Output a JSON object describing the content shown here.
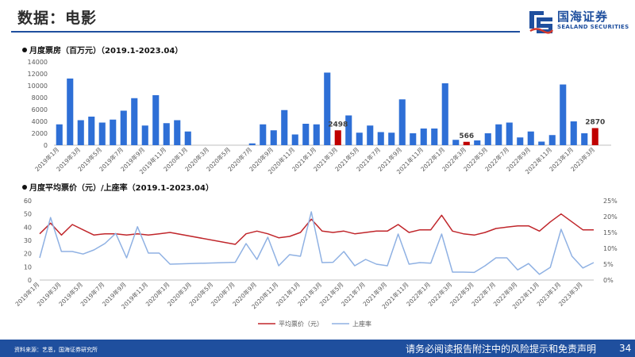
{
  "header": {
    "title": "数据：电影",
    "logo_cn": "国海证券",
    "logo_en": "SEALAND SECURITIES"
  },
  "colors": {
    "brand": "#1f4f9e",
    "bar": "#2e6fd6",
    "bar_highlight": "#c00000",
    "price_line": "#c0262b",
    "occupancy_line": "#8fb1e3"
  },
  "chart_data": [
    {
      "type": "bar",
      "title": "月度票房（百万元）（2019.1-2023.04）",
      "ylim": [
        0,
        14000
      ],
      "yticks": [
        "0",
        "2000",
        "4000",
        "6000",
        "8000",
        "10000",
        "12000",
        "14000"
      ],
      "categories": [
        "2019年1月",
        "2019年2月",
        "2019年3月",
        "2019年4月",
        "2019年5月",
        "2019年6月",
        "2019年7月",
        "2019年8月",
        "2019年9月",
        "2019年10月",
        "2019年11月",
        "2019年12月",
        "2020年1月",
        "2020年2月",
        "2020年3月",
        "2020年4月",
        "2020年5月",
        "2020年6月",
        "2020年7月",
        "2020年8月",
        "2020年9月",
        "2020年10月",
        "2020年11月",
        "2020年12月",
        "2021年1月",
        "2021年2月",
        "2021年3月",
        "2021年4月",
        "2021年5月",
        "2021年6月",
        "2021年7月",
        "2021年8月",
        "2021年9月",
        "2021年10月",
        "2021年11月",
        "2021年12月",
        "2022年1月",
        "2022年2月",
        "2022年3月",
        "2022年4月",
        "2022年5月",
        "2022年6月",
        "2022年7月",
        "2022年8月",
        "2022年9月",
        "2022年10月",
        "2022年11月",
        "2022年12月",
        "2023年1月",
        "2023年2月",
        "2023年3月",
        "2023年4月"
      ],
      "tick_labels": [
        "2019年1月",
        "2019年3月",
        "2019年5月",
        "2019年7月",
        "2019年9月",
        "2019年11月",
        "2020年1月",
        "2020年3月",
        "2020年5月",
        "2020年7月",
        "2020年9月",
        "2020年11月",
        "2021年1月",
        "2021年3月",
        "2021年5月",
        "2021年7月",
        "2021年9月",
        "2021年11月",
        "2022年1月",
        "2022年3月",
        "2022年5月",
        "2022年7月",
        "2022年9月",
        "2022年11月",
        "2023年1月",
        "2023年3月"
      ],
      "values": [
        3500,
        11200,
        4200,
        4800,
        3800,
        4300,
        5800,
        7900,
        3300,
        8400,
        3700,
        4200,
        2300,
        0,
        0,
        0,
        0,
        0,
        300,
        3500,
        2500,
        5900,
        1800,
        3600,
        3500,
        12200,
        2498,
        5000,
        2100,
        3300,
        2200,
        2100,
        7700,
        2000,
        2800,
        2800,
        10400,
        900,
        566,
        800,
        2000,
        3500,
        3800,
        1300,
        2300,
        600,
        1700,
        10200,
        4000,
        2000,
        2870,
        null
      ],
      "highlight_indices": [
        26,
        38,
        50
      ],
      "data_labels": [
        {
          "index": 26,
          "text": "2498"
        },
        {
          "index": 38,
          "text": "566"
        },
        {
          "index": 50,
          "text": "2870"
        }
      ]
    },
    {
      "type": "line",
      "title": "月度平均票价（元）/上座率（2019.1-2023.04）",
      "ylim_left": [
        0,
        60
      ],
      "ylim_right": [
        0,
        0.25
      ],
      "yticks_left": [
        "0",
        "10",
        "20",
        "30",
        "40",
        "50",
        "60"
      ],
      "yticks_right": [
        "0%",
        "5%",
        "10%",
        "15%",
        "20%",
        "25%"
      ],
      "tick_labels": [
        "2019年1月",
        "2019年3月",
        "2019年5月",
        "2019年7月",
        "2019年9月",
        "2019年11月",
        "2020年1月",
        "2020年3月",
        "2020年5月",
        "2020年7月",
        "2020年9月",
        "2020年11月",
        "2021年1月",
        "2021年3月",
        "2021年5月",
        "2021年7月",
        "2021年9月",
        "2021年11月",
        "2022年1月",
        "2022年3月",
        "2022年5月",
        "2022年7月",
        "2022年9月",
        "2022年11月",
        "2023年1月",
        "2023年3月"
      ],
      "x": [
        "2019年1月",
        "2019年2月",
        "2019年3月",
        "2019年4月",
        "2019年5月",
        "2019年6月",
        "2019年7月",
        "2019年8月",
        "2019年9月",
        "2019年10月",
        "2019年11月",
        "2019年12月",
        "2020年1月",
        "2020年7月",
        "2020年8月",
        "2020年9月",
        "2020年10月",
        "2020年11月",
        "2020年12月",
        "2021年1月",
        "2021年2月",
        "2021年3月",
        "2021年4月",
        "2021年5月",
        "2021年6月",
        "2021年7月",
        "2021年8月",
        "2021年9月",
        "2021年10月",
        "2021年11月",
        "2021年12月",
        "2022年1月",
        "2022年2月",
        "2022年3月",
        "2022年4月",
        "2022年5月",
        "2022年6月",
        "2022年7月",
        "2022年8月",
        "2022年9月",
        "2022年10月",
        "2022年11月",
        "2022年12月",
        "2023年1月",
        "2023年2月",
        "2023年3月",
        "2023年4月"
      ],
      "series": [
        {
          "name": "平均票价（元）",
          "axis": "left",
          "values": [
            35,
            43,
            34,
            42,
            38,
            34,
            35,
            35,
            34,
            35,
            34,
            35,
            36,
            27,
            35,
            37,
            35,
            32,
            33,
            36,
            46,
            37,
            36,
            37,
            35,
            36,
            37,
            37,
            42,
            36,
            38,
            38,
            49,
            37,
            35,
            34,
            36,
            39,
            40,
            41,
            41,
            37,
            44,
            50,
            44,
            38,
            38
          ]
        },
        {
          "name": "上座率",
          "axis": "right",
          "values": [
            0.07,
            0.197,
            0.09,
            0.09,
            0.082,
            0.095,
            0.115,
            0.147,
            0.07,
            0.168,
            0.085,
            0.085,
            0.05,
            0.056,
            0.115,
            0.065,
            0.135,
            0.045,
            0.08,
            0.075,
            0.215,
            0.055,
            0.056,
            0.09,
            0.045,
            0.065,
            0.05,
            0.045,
            0.145,
            0.05,
            0.055,
            0.053,
            0.145,
            0.025,
            0.025,
            0.024,
            0.045,
            0.07,
            0.07,
            0.032,
            0.052,
            0.018,
            0.04,
            0.16,
            0.075,
            0.038,
            0.055
          ]
        }
      ]
    }
  ],
  "footer": {
    "source": "资料来源：艺恩，国海证券研究所",
    "disclaimer": "请务必阅读报告附注中的风险提示和免责声明",
    "page": "34"
  }
}
